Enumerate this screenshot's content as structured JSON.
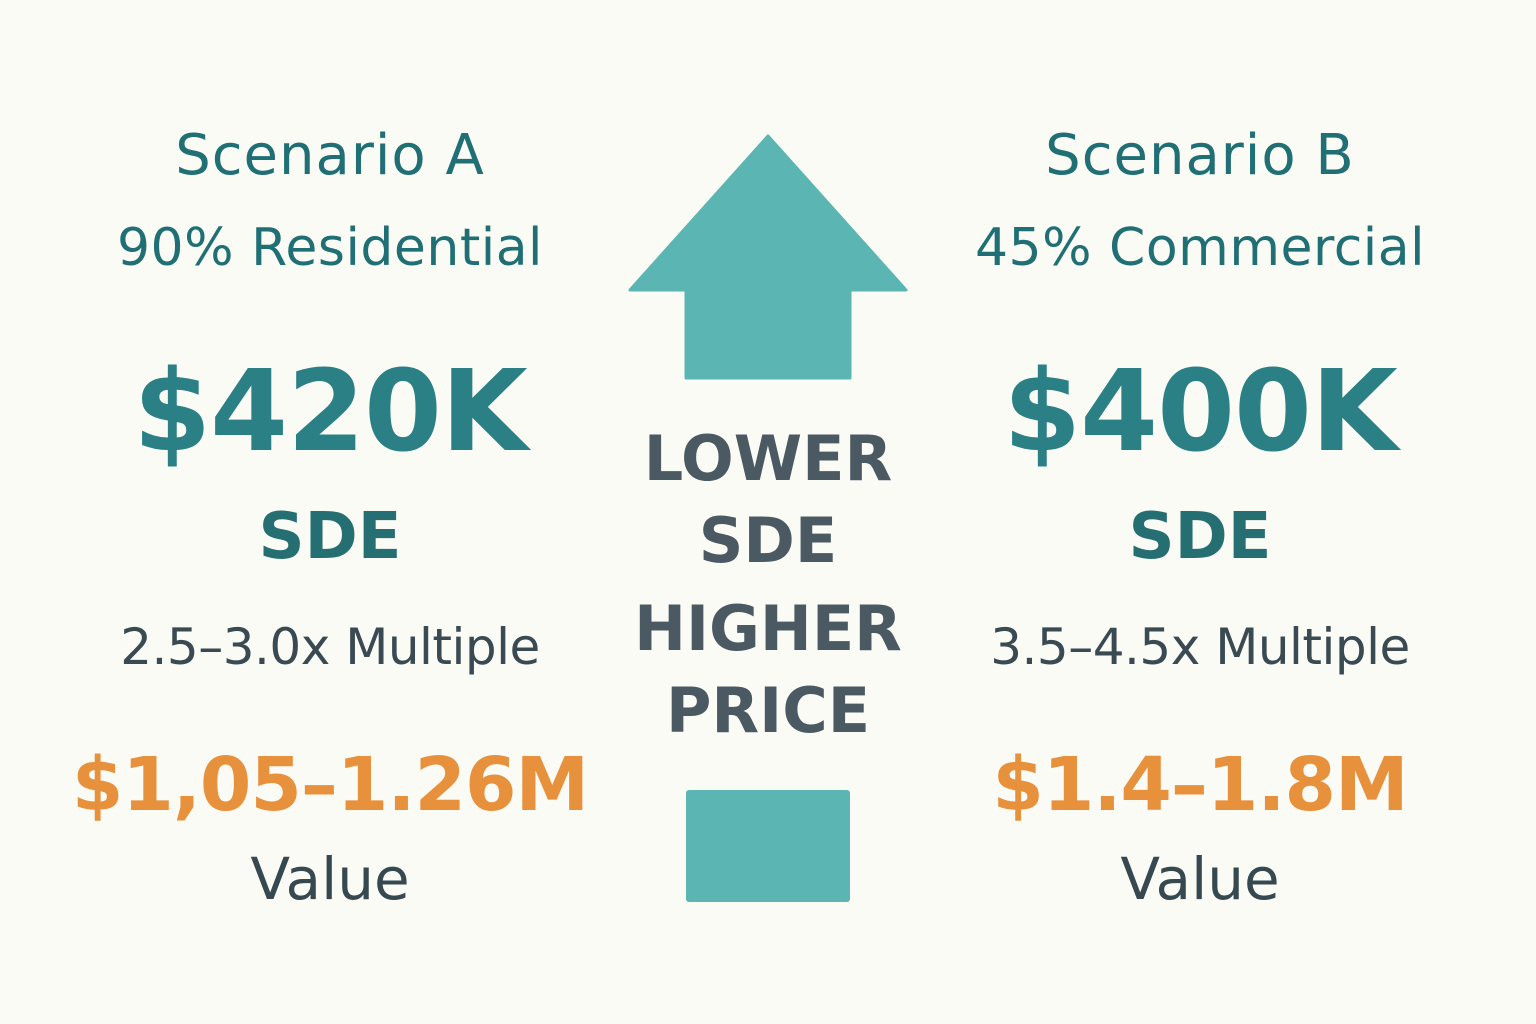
{
  "colors": {
    "background": "#fbfbf6",
    "teal": "#2a8084",
    "teal_shape": "#5ab5b3",
    "orange": "#e8913d",
    "slate": "#4b5a62"
  },
  "scenario_a": {
    "title": "Scenario A",
    "subtitle": "90% Residential",
    "sde_amount": "$420K",
    "sde_label": "SDE",
    "multiple": "2.5–3.0x Multiple",
    "value_amount": "$1,05–1.26M",
    "value_label": "Value"
  },
  "scenario_b": {
    "title": "Scenario B",
    "subtitle": "45% Commercial",
    "sde_amount": "$400K",
    "sde_label": "SDE",
    "multiple": "3.5–4.5x Multiple",
    "value_amount": "$1.4–1.8M",
    "value_label": "Value"
  },
  "center": {
    "icon_top": "up-arrow-icon",
    "icon_bottom": "square-block-icon",
    "lines": [
      "LOWER",
      "SDE",
      "HIGHER",
      "PRICE"
    ]
  }
}
